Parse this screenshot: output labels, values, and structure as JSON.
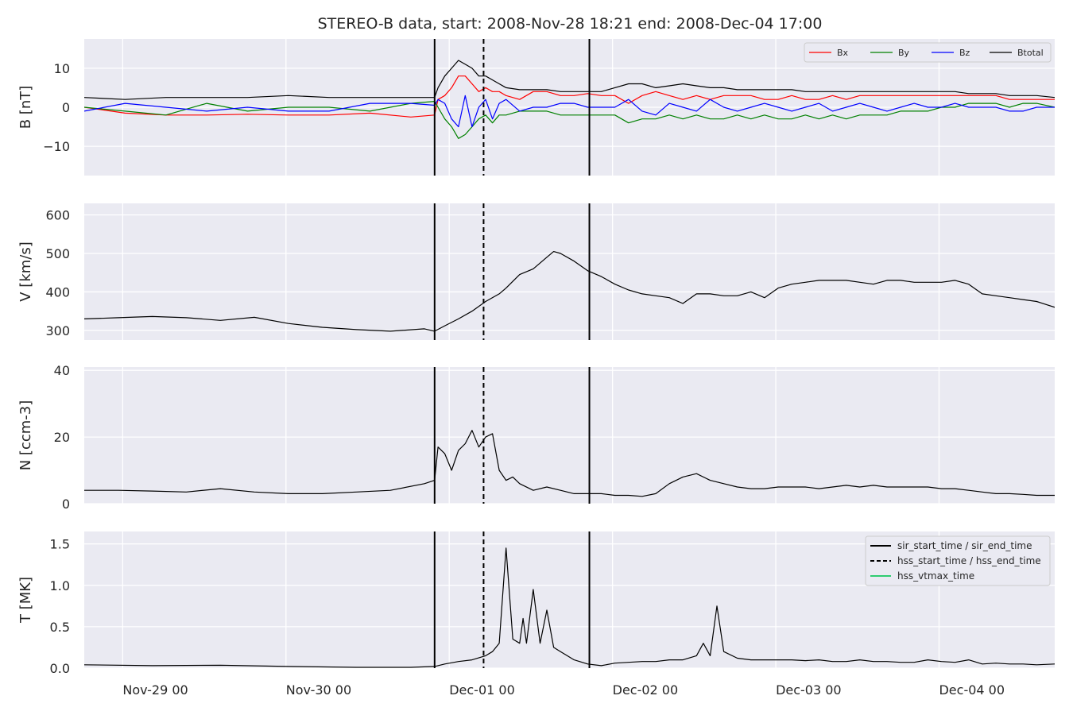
{
  "figure": {
    "title": "STEREO-B data, start: 2008-Nov-28 18:21  end: 2008-Dec-04 17:00",
    "x_tick_labels": [
      "Nov-29 00",
      "Nov-30 00",
      "Dec-01 00",
      "Dec-02 00",
      "Dec-03 00",
      "Dec-04 00"
    ],
    "vlines": {
      "sir_start_time": "2008-11-30 21:50",
      "hss_start_time": "2008-12-01 05:20",
      "sir_end_time": "2008-12-01 21:00"
    },
    "legend_b": [
      "Bx",
      "By",
      "Bz",
      "Btotal"
    ],
    "legend_t": [
      "sir_start_time / sir_end_time",
      "hss_start_time / hss_end_time",
      "hss_vtmax_time"
    ]
  },
  "colors": {
    "bx": "#ff0000",
    "by": "#008000",
    "bz": "#0000ff",
    "btotal": "#000000",
    "hss_vtmax": "#2ecc71",
    "panel_bg": "#eaeaf2",
    "grid": "#ffffff"
  },
  "chart_data": [
    {
      "type": "line",
      "ylabel": "B [nT]",
      "ylim": [
        -17.5,
        17.5
      ],
      "yticks": [
        -10,
        0,
        10
      ],
      "x_unit": "hours since 2008-11-28 18:21",
      "x": [
        0,
        6,
        12,
        18,
        24,
        30,
        36,
        42,
        48,
        51.5,
        52,
        53,
        54,
        55,
        56,
        57,
        58,
        59,
        60,
        61,
        62,
        64,
        66,
        68,
        70,
        72,
        74,
        76,
        78,
        80,
        82,
        84,
        86,
        88,
        90,
        92,
        94,
        96,
        98,
        100,
        102,
        104,
        106,
        108,
        110,
        112,
        114,
        116,
        118,
        120,
        122,
        124,
        126,
        128,
        130,
        132,
        134,
        136,
        138,
        140,
        142.65
      ],
      "series": [
        {
          "name": "Bx",
          "values": [
            0,
            -1.5,
            -2,
            -2,
            -1.8,
            -2,
            -2,
            -1.5,
            -2.5,
            -2,
            2,
            3,
            5,
            8,
            8,
            6,
            4,
            5,
            4,
            4,
            3,
            2,
            4,
            4,
            3,
            3,
            3.5,
            3,
            3,
            1,
            3,
            4,
            3,
            2,
            3,
            2,
            3,
            3,
            3,
            2,
            2,
            3,
            2,
            2,
            3,
            2,
            3,
            3,
            3,
            3,
            3,
            3,
            3,
            3,
            3,
            3,
            3,
            2,
            2,
            2,
            2
          ]
        },
        {
          "name": "By",
          "values": [
            0,
            -1,
            -2,
            1,
            -1,
            0,
            0,
            -1,
            1,
            1.5,
            0,
            -3,
            -5,
            -8,
            -7,
            -5,
            -3,
            -2,
            -4,
            -2,
            -2,
            -1,
            -1,
            -1,
            -2,
            -2,
            -2,
            -2,
            -2,
            -4,
            -3,
            -3,
            -2,
            -3,
            -2,
            -3,
            -3,
            -2,
            -3,
            -2,
            -3,
            -3,
            -2,
            -3,
            -2,
            -3,
            -2,
            -2,
            -2,
            -1,
            -1,
            -1,
            0,
            0,
            1,
            1,
            1,
            0,
            1,
            1,
            0
          ]
        },
        {
          "name": "Bz",
          "values": [
            -1,
            1,
            0,
            -1,
            0,
            -1,
            -1,
            1,
            1,
            0.5,
            2,
            1,
            -3,
            -5,
            3,
            -5,
            0,
            2,
            -3,
            1,
            2,
            -1,
            0,
            0,
            1,
            1,
            0,
            0,
            0,
            2,
            -1,
            -2,
            1,
            0,
            -1,
            2,
            0,
            -1,
            0,
            1,
            0,
            -1,
            0,
            1,
            -1,
            0,
            1,
            0,
            -1,
            0,
            1,
            0,
            0,
            1,
            0,
            0,
            0,
            -1,
            -1,
            0,
            0
          ]
        },
        {
          "name": "Btotal",
          "values": [
            2.5,
            2,
            2.5,
            2.5,
            2.5,
            3,
            2.5,
            2.5,
            2.5,
            2.5,
            5,
            8,
            10,
            12,
            11,
            10,
            8,
            8,
            7,
            6,
            5,
            4.5,
            4.5,
            4.5,
            4,
            4,
            4,
            4,
            5,
            6,
            6,
            5,
            5.5,
            6,
            5.5,
            5,
            5,
            4.5,
            4.5,
            4.5,
            4.5,
            4.5,
            4,
            4,
            4,
            4,
            4,
            4,
            4,
            4,
            4,
            4,
            4,
            4,
            3.5,
            3.5,
            3.5,
            3,
            3,
            3,
            2.5
          ]
        }
      ]
    },
    {
      "type": "line",
      "ylabel": "V [km/s]",
      "ylim": [
        275,
        630
      ],
      "yticks": [
        300,
        400,
        500,
        600
      ],
      "x_unit": "hours since 2008-11-28 18:21",
      "x": [
        0,
        5,
        10,
        15,
        20,
        25,
        30,
        35,
        40,
        45,
        50,
        51.5,
        53,
        55,
        57,
        59,
        61,
        62,
        64,
        66,
        68,
        69,
        70,
        72,
        74,
        76,
        78,
        80,
        82,
        84,
        86,
        88,
        90,
        92,
        94,
        96,
        98,
        100,
        102,
        104,
        106,
        108,
        110,
        112,
        114,
        116,
        118,
        120,
        122,
        124,
        126,
        128,
        130,
        132,
        134,
        136,
        138,
        140,
        142.65
      ],
      "series": [
        {
          "name": "V",
          "values": [
            330,
            333,
            336,
            333,
            326,
            334,
            318,
            308,
            302,
            298,
            304,
            298,
            312,
            330,
            350,
            375,
            395,
            410,
            445,
            460,
            490,
            505,
            500,
            480,
            455,
            440,
            420,
            405,
            395,
            390,
            385,
            370,
            395,
            395,
            390,
            390,
            400,
            385,
            410,
            420,
            425,
            430,
            430,
            430,
            425,
            420,
            430,
            430,
            425,
            425,
            425,
            430,
            420,
            395,
            390,
            385,
            380,
            375,
            360
          ]
        }
      ]
    },
    {
      "type": "line",
      "ylabel": "N [ccm-3]",
      "ylim": [
        0,
        41
      ],
      "yticks": [
        0,
        20,
        40
      ],
      "x_unit": "hours since 2008-11-28 18:21",
      "x": [
        0,
        5,
        10,
        15,
        20,
        25,
        30,
        35,
        40,
        45,
        50,
        51.5,
        52,
        53,
        54,
        55,
        56,
        57,
        58,
        59,
        60,
        61,
        62,
        63,
        64,
        66,
        68,
        70,
        72,
        74,
        76,
        78,
        80,
        82,
        84,
        86,
        88,
        90,
        92,
        94,
        96,
        98,
        100,
        102,
        104,
        106,
        108,
        110,
        112,
        114,
        116,
        118,
        120,
        122,
        124,
        126,
        128,
        130,
        132,
        134,
        136,
        138,
        140,
        142.65
      ],
      "series": [
        {
          "name": "N",
          "values": [
            4,
            4,
            3.8,
            3.5,
            4.5,
            3.5,
            3,
            3,
            3.5,
            4,
            6,
            7,
            17,
            15,
            10,
            16,
            18,
            22,
            17,
            20,
            21,
            10,
            7,
            8,
            6,
            4,
            5,
            4,
            3,
            3,
            3,
            2.5,
            2.5,
            2.2,
            3,
            6,
            8,
            9,
            7,
            6,
            5,
            4.5,
            4.5,
            5,
            5,
            5,
            4.5,
            5,
            5.5,
            5,
            5.5,
            5,
            5,
            5,
            5,
            4.5,
            4.5,
            4,
            3.5,
            3,
            3,
            2.8,
            2.5,
            2.5
          ]
        }
      ]
    },
    {
      "type": "line",
      "ylabel": "T [MK]",
      "ylim": [
        0,
        1.65
      ],
      "yticks": [
        0.0,
        0.5,
        1.0,
        1.5
      ],
      "x_unit": "hours since 2008-11-28 18:21",
      "x": [
        0,
        10,
        20,
        30,
        40,
        48,
        51.5,
        53,
        55,
        57,
        59,
        60,
        61,
        62,
        63,
        64,
        64.5,
        65,
        66,
        67,
        68,
        69,
        70,
        71,
        72,
        74,
        76,
        78,
        80,
        82,
        84,
        86,
        88,
        90,
        91,
        92,
        93,
        94,
        96,
        98,
        100,
        102,
        104,
        106,
        108,
        110,
        112,
        114,
        116,
        118,
        120,
        122,
        124,
        126,
        128,
        130,
        132,
        134,
        136,
        138,
        140,
        142.65
      ],
      "series": [
        {
          "name": "T",
          "values": [
            0.04,
            0.03,
            0.035,
            0.02,
            0.01,
            0.01,
            0.02,
            0.05,
            0.08,
            0.1,
            0.15,
            0.2,
            0.3,
            1.45,
            0.35,
            0.3,
            0.6,
            0.3,
            0.95,
            0.3,
            0.7,
            0.25,
            0.2,
            0.15,
            0.1,
            0.05,
            0.03,
            0.06,
            0.07,
            0.08,
            0.08,
            0.1,
            0.1,
            0.15,
            0.3,
            0.15,
            0.75,
            0.2,
            0.12,
            0.1,
            0.1,
            0.1,
            0.1,
            0.09,
            0.1,
            0.08,
            0.08,
            0.1,
            0.08,
            0.08,
            0.07,
            0.07,
            0.1,
            0.08,
            0.07,
            0.1,
            0.05,
            0.06,
            0.05,
            0.05,
            0.04,
            0.05
          ]
        }
      ]
    }
  ]
}
